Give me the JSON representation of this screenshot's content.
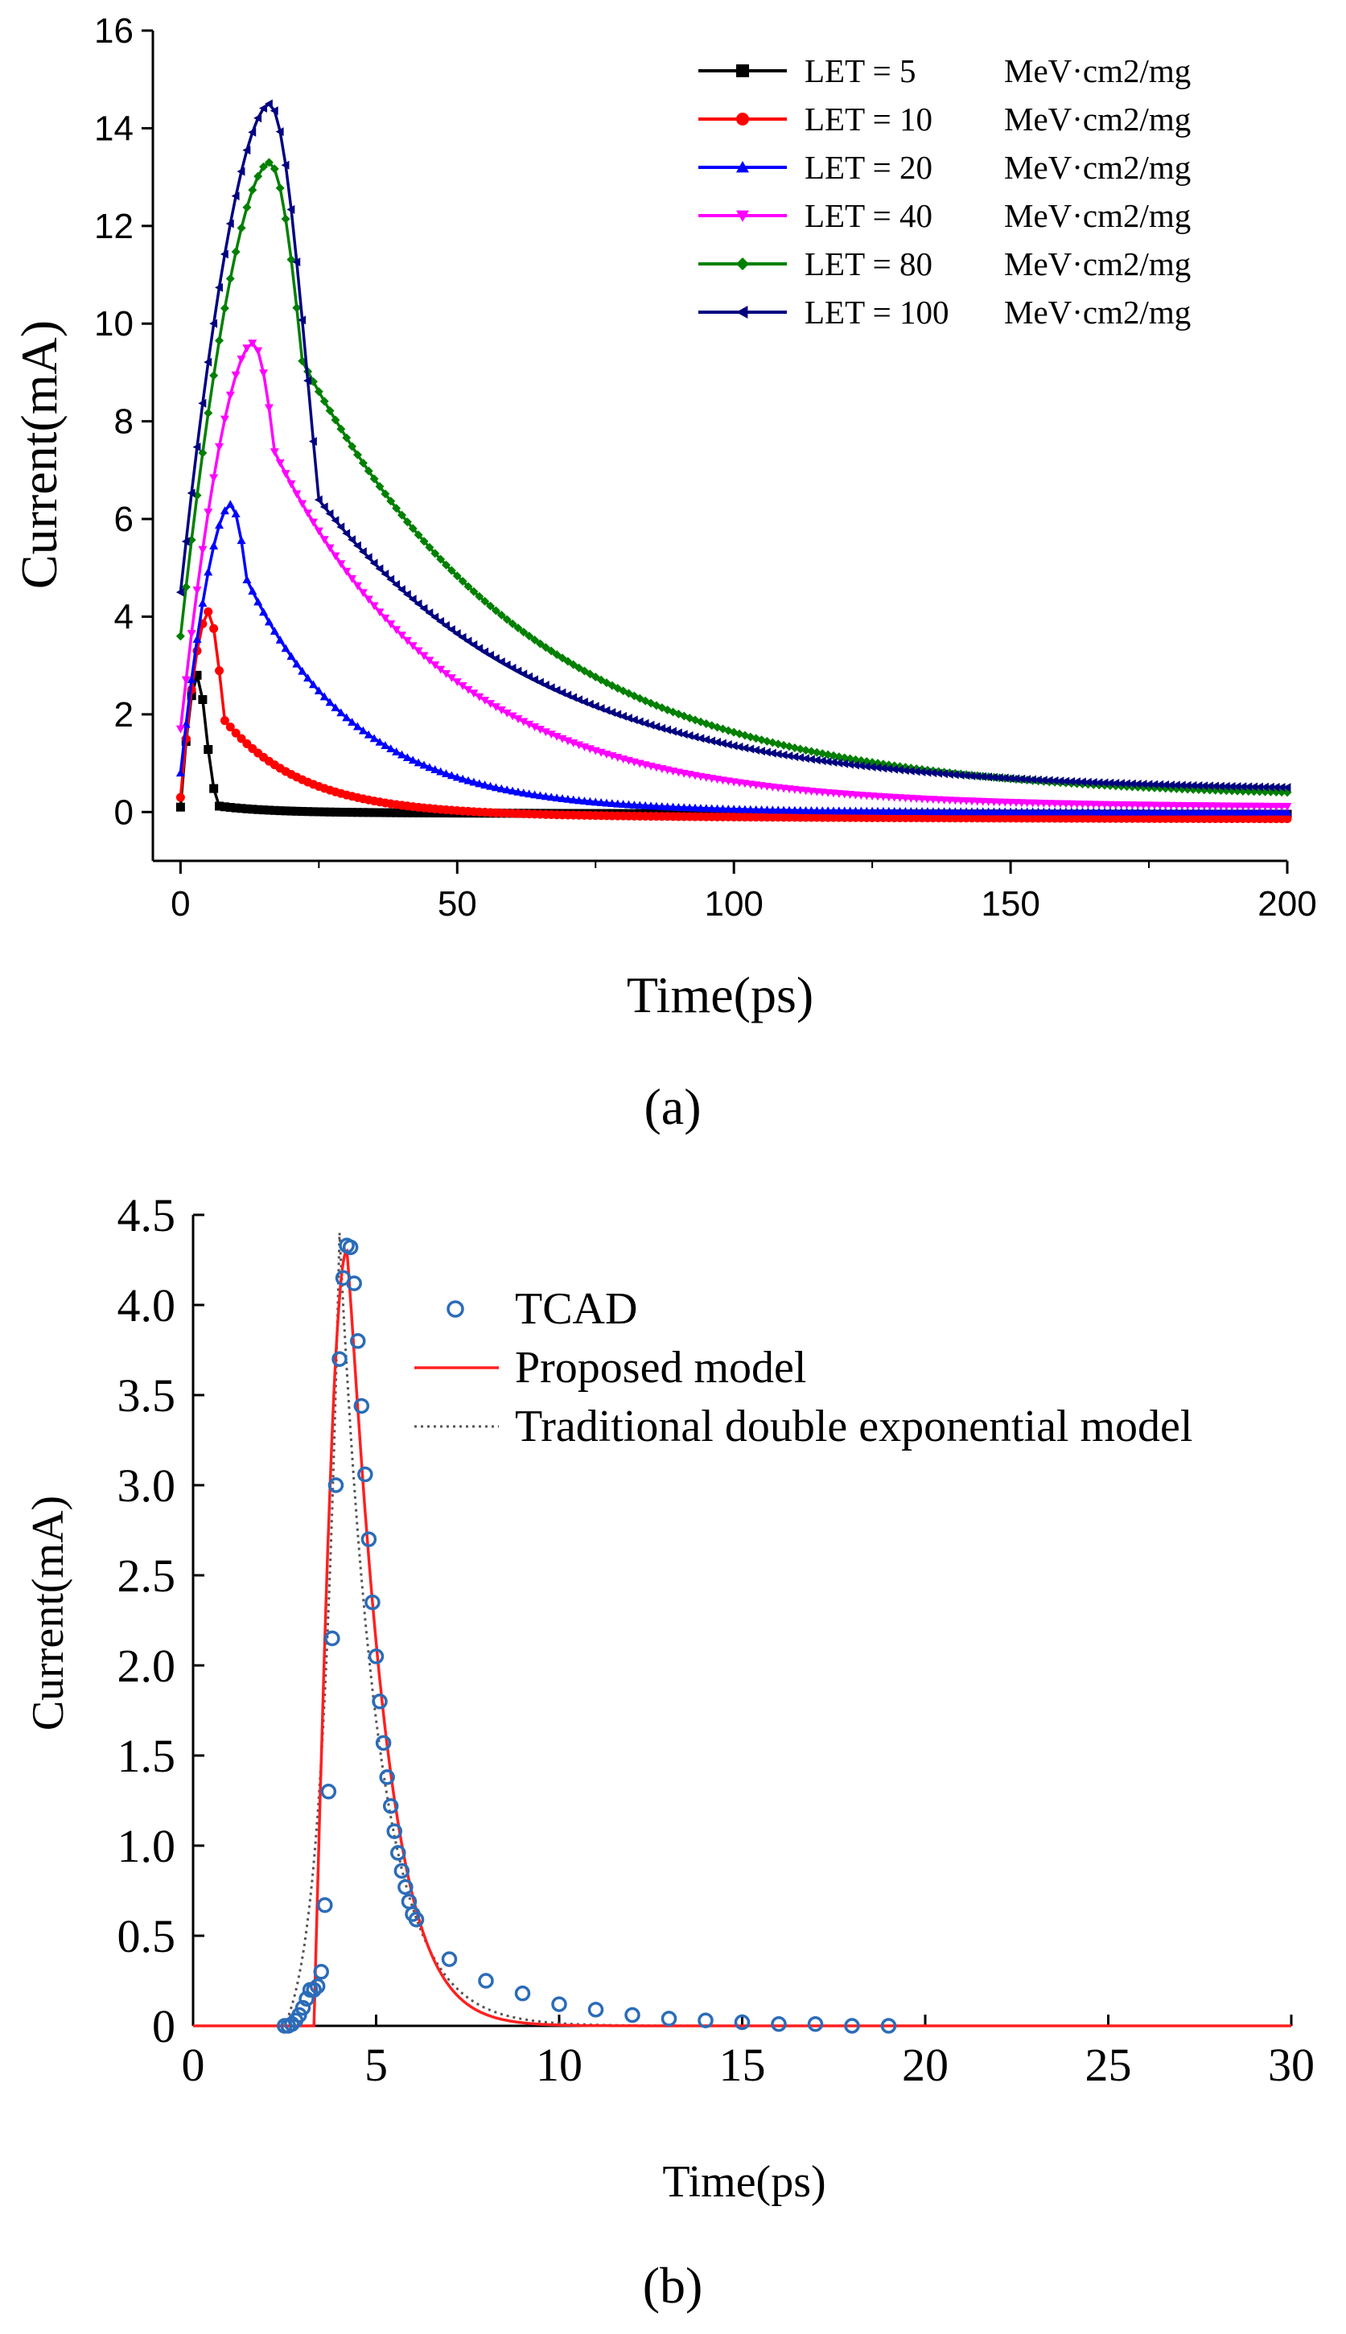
{
  "chart_data": [
    {
      "id": "a",
      "type": "line",
      "panel_label": "(a)",
      "xlabel": "Time(ps)",
      "ylabel": "Current(mA)",
      "xlim": [
        -5,
        200
      ],
      "ylim": [
        -1,
        16
      ],
      "xticks": [
        0,
        50,
        100,
        150,
        200
      ],
      "yticks": [
        0,
        2,
        4,
        6,
        8,
        10,
        12,
        14,
        16
      ],
      "legend_position": "top-right",
      "series": [
        {
          "name": "LET = 5",
          "unit": "MeV·cm2/mg",
          "color": "#000000",
          "marker": "square",
          "peak": 2.8,
          "t_peak": 3,
          "start": 0.1,
          "tau": 9,
          "sigma": 1.6,
          "plateau": 4,
          "tail": -0.05
        },
        {
          "name": "LET = 10",
          "unit": "MeV·cm2/mg",
          "color": "#ff0000",
          "marker": "circle",
          "peak": 4.1,
          "t_peak": 5,
          "start": 0.3,
          "tau": 14,
          "sigma": 2.4,
          "plateau": 3,
          "tail": -0.15
        },
        {
          "name": "LET = 20",
          "unit": "MeV·cm2/mg",
          "color": "#0000ff",
          "marker": "triangle-up",
          "peak": 6.3,
          "t_peak": 9,
          "start": 0.8,
          "tau": 20,
          "sigma": 4.0,
          "plateau": 3,
          "tail": 0.0
        },
        {
          "name": "LET = 40",
          "unit": "MeV·cm2/mg",
          "color": "#ff00ff",
          "marker": "triangle-down",
          "peak": 9.6,
          "t_peak": 13,
          "start": 1.7,
          "tau": 32,
          "sigma": 5.5,
          "plateau": 4,
          "tail": 0.1
        },
        {
          "name": "LET = 80",
          "unit": "MeV·cm2/mg",
          "color": "#008000",
          "marker": "diamond",
          "peak": 13.3,
          "t_peak": 16,
          "start": 3.6,
          "tau": 42,
          "sigma": 7.0,
          "plateau": 6,
          "tail": 0.3
        },
        {
          "name": "LET = 100",
          "unit": "MeV·cm2/mg",
          "color": "#000080",
          "marker": "triangle-left",
          "peak": 14.5,
          "t_peak": 16,
          "start": 4.5,
          "tau": 42,
          "sigma": 7.0,
          "plateau": 9,
          "tail": 0.45
        }
      ]
    },
    {
      "id": "b",
      "type": "line",
      "panel_label": "(b)",
      "xlabel": "Time(ps)",
      "ylabel": "Current(mA)",
      "xlim": [
        0,
        30
      ],
      "ylim": [
        0,
        4.5
      ],
      "xticks": [
        0,
        5,
        10,
        15,
        20,
        25,
        30
      ],
      "yticks": [
        0,
        0.5,
        1.0,
        1.5,
        2.0,
        2.5,
        3.0,
        3.5,
        4.0,
        4.5
      ],
      "ytick_labels": [
        "0",
        "0.5",
        "1.0",
        "1.5",
        "2.0",
        "2.5",
        "3.0",
        "3.5",
        "4.0",
        "4.5"
      ],
      "legend_position": "top-right",
      "legend": [
        {
          "name": "TCAD",
          "style": "open-circle",
          "color": "#2b6cb8"
        },
        {
          "name": "Proposed model",
          "style": "solid",
          "color": "#ff2020"
        },
        {
          "name": "Traditional double exponential model",
          "style": "dotted",
          "color": "#555555"
        }
      ],
      "tcad_points": [
        [
          2.5,
          0.0
        ],
        [
          2.6,
          0.0
        ],
        [
          2.7,
          0.01
        ],
        [
          2.8,
          0.03
        ],
        [
          2.9,
          0.06
        ],
        [
          3.0,
          0.1
        ],
        [
          3.1,
          0.15
        ],
        [
          3.2,
          0.2
        ],
        [
          3.3,
          0.2
        ],
        [
          3.4,
          0.22
        ],
        [
          3.5,
          0.3
        ],
        [
          3.6,
          0.67
        ],
        [
          3.7,
          1.3
        ],
        [
          3.8,
          2.15
        ],
        [
          3.9,
          3.0
        ],
        [
          4.0,
          3.7
        ],
        [
          4.1,
          4.15
        ],
        [
          4.2,
          4.33
        ],
        [
          4.3,
          4.32
        ],
        [
          4.4,
          4.12
        ],
        [
          4.5,
          3.8
        ],
        [
          4.6,
          3.44
        ],
        [
          4.7,
          3.06
        ],
        [
          4.8,
          2.7
        ],
        [
          4.9,
          2.35
        ],
        [
          5.0,
          2.05
        ],
        [
          5.1,
          1.8
        ],
        [
          5.2,
          1.57
        ],
        [
          5.3,
          1.38
        ],
        [
          5.4,
          1.22
        ],
        [
          5.5,
          1.08
        ],
        [
          5.6,
          0.96
        ],
        [
          5.7,
          0.86
        ],
        [
          5.8,
          0.77
        ],
        [
          5.9,
          0.69
        ],
        [
          6.0,
          0.62
        ],
        [
          6.1,
          0.59
        ],
        [
          7.0,
          0.37
        ],
        [
          8.0,
          0.25
        ],
        [
          9.0,
          0.18
        ],
        [
          10.0,
          0.12
        ],
        [
          11.0,
          0.09
        ],
        [
          12.0,
          0.06
        ],
        [
          13.0,
          0.04
        ],
        [
          14.0,
          0.03
        ],
        [
          15.0,
          0.02
        ],
        [
          16.0,
          0.01
        ],
        [
          17.0,
          0.01
        ],
        [
          18.0,
          0.0
        ],
        [
          19.0,
          0.0
        ]
      ],
      "proposed_model": {
        "t_on": 3.3,
        "t_peak": 4.2,
        "peak": 4.3,
        "decay_tau": 1.1
      },
      "traditional_model": {
        "t_start": 2.5,
        "t_peak": 4.0,
        "peak": 4.4,
        "decay_tau": 1.05
      }
    }
  ]
}
